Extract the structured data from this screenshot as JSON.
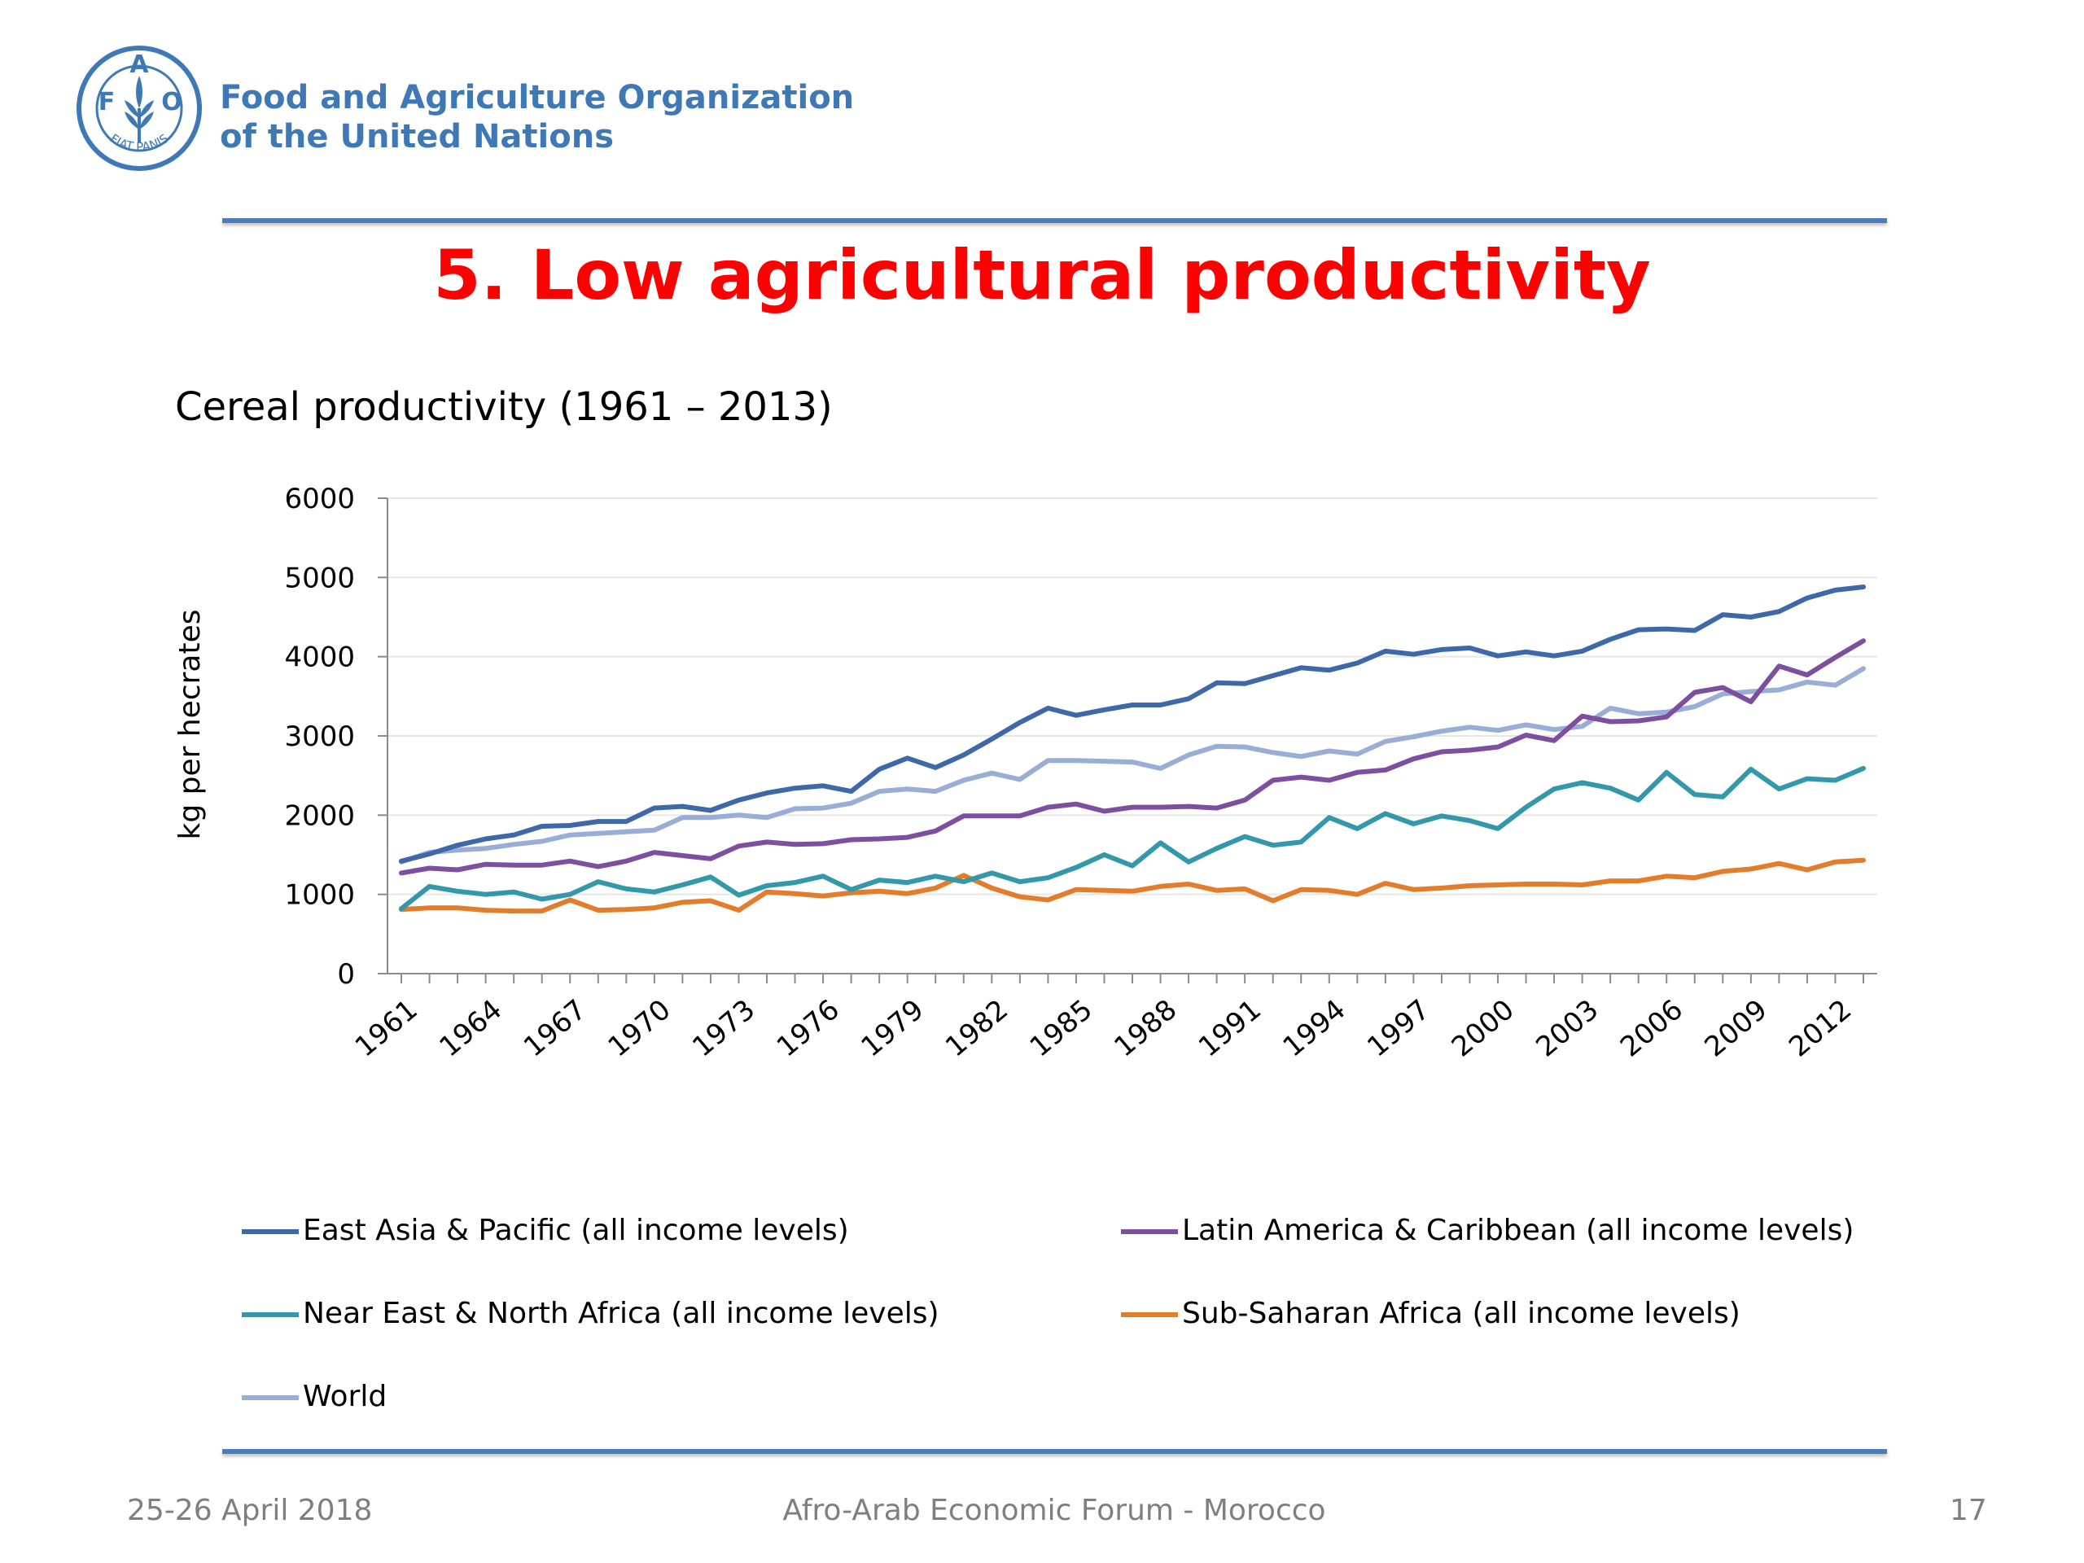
{
  "header": {
    "org_line1": "Food and Agriculture Organization",
    "org_line2": "of the United Nations",
    "logo_letters": [
      "F",
      "A",
      "O"
    ],
    "logo_motto": "FIAT PANIS"
  },
  "slide": {
    "title": "5. Low agricultural productivity",
    "subtitle": "Cereal productivity (1961 – 2013)"
  },
  "colors": {
    "accent": "#4a7ebb",
    "title": "#ff0000",
    "footer_text": "#7f7f7f"
  },
  "chart_data": {
    "type": "line",
    "ylabel": "kg per hecrates",
    "ylim": [
      0,
      6000
    ],
    "yticks": [
      0,
      1000,
      2000,
      3000,
      4000,
      5000,
      6000
    ],
    "xtick_labels": [
      "1961",
      "1964",
      "1967",
      "1970",
      "1973",
      "1976",
      "1979",
      "1982",
      "1985",
      "1988",
      "1991",
      "1994",
      "1997",
      "2000",
      "2003",
      "2006",
      "2009",
      "2012"
    ],
    "x": [
      1961,
      1962,
      1963,
      1964,
      1965,
      1966,
      1967,
      1968,
      1969,
      1970,
      1971,
      1972,
      1973,
      1974,
      1975,
      1976,
      1977,
      1978,
      1979,
      1980,
      1981,
      1982,
      1983,
      1984,
      1985,
      1986,
      1987,
      1988,
      1989,
      1990,
      1991,
      1992,
      1993,
      1994,
      1995,
      1996,
      1997,
      1998,
      1999,
      2000,
      2001,
      2002,
      2003,
      2004,
      2005,
      2006,
      2007,
      2008,
      2009,
      2010,
      2011,
      2012,
      2013
    ],
    "grid": "horizontal",
    "legend_position": "bottom",
    "series": [
      {
        "name": "East Asia & Pacific (all income levels)",
        "color": "#3e68a8",
        "values": [
          1420,
          1510,
          1620,
          1700,
          1750,
          1860,
          1870,
          1920,
          1920,
          2090,
          2110,
          2060,
          2190,
          2280,
          2340,
          2370,
          2300,
          2580,
          2720,
          2600,
          2760,
          2960,
          3170,
          3350,
          3260,
          3330,
          3390,
          3390,
          3470,
          3670,
          3660,
          3760,
          3860,
          3830,
          3920,
          4070,
          4030,
          4090,
          4110,
          4010,
          4060,
          4010,
          4070,
          4220,
          4340,
          4350,
          4330,
          4530,
          4500,
          4570,
          4740,
          4840,
          4880
        ]
      },
      {
        "name": "Latin America & Caribbean (all income levels)",
        "color": "#7e4f9f",
        "values": [
          1270,
          1330,
          1310,
          1380,
          1370,
          1370,
          1420,
          1350,
          1420,
          1530,
          1490,
          1450,
          1610,
          1660,
          1630,
          1640,
          1690,
          1700,
          1720,
          1800,
          1990,
          1990,
          1990,
          2100,
          2140,
          2050,
          2100,
          2100,
          2110,
          2090,
          2190,
          2440,
          2480,
          2440,
          2540,
          2570,
          2710,
          2800,
          2820,
          2860,
          3010,
          2940,
          3250,
          3180,
          3190,
          3240,
          3550,
          3610,
          3430,
          3880,
          3770,
          3990,
          4200
        ]
      },
      {
        "name": "Near East & North Africa (all income levels)",
        "color": "#3399aa",
        "values": [
          820,
          1100,
          1040,
          1000,
          1030,
          940,
          1000,
          1160,
          1070,
          1030,
          1120,
          1220,
          990,
          1110,
          1150,
          1230,
          1060,
          1180,
          1150,
          1230,
          1160,
          1270,
          1160,
          1210,
          1340,
          1500,
          1360,
          1650,
          1410,
          1580,
          1730,
          1620,
          1660,
          1970,
          1830,
          2020,
          1890,
          1990,
          1930,
          1830,
          2100,
          2330,
          2410,
          2340,
          2190,
          2540,
          2260,
          2230,
          2580,
          2330,
          2460,
          2440,
          2590
        ]
      },
      {
        "name": "Sub-Saharan Africa (all income levels)",
        "color": "#e37d2c",
        "values": [
          810,
          830,
          830,
          800,
          790,
          790,
          930,
          800,
          810,
          830,
          900,
          920,
          800,
          1030,
          1010,
          980,
          1020,
          1040,
          1010,
          1080,
          1240,
          1080,
          970,
          930,
          1060,
          1050,
          1040,
          1100,
          1130,
          1050,
          1070,
          920,
          1060,
          1050,
          1000,
          1140,
          1060,
          1080,
          1110,
          1120,
          1130,
          1130,
          1120,
          1170,
          1170,
          1230,
          1210,
          1290,
          1320,
          1390,
          1310,
          1410,
          1430
        ]
      },
      {
        "name": "World",
        "color": "#99add6",
        "values": [
          1410,
          1530,
          1560,
          1580,
          1630,
          1670,
          1750,
          1770,
          1790,
          1810,
          1970,
          1970,
          2000,
          1970,
          2080,
          2090,
          2150,
          2300,
          2330,
          2300,
          2440,
          2530,
          2450,
          2690,
          2690,
          2680,
          2670,
          2590,
          2760,
          2870,
          2860,
          2790,
          2740,
          2810,
          2770,
          2930,
          2990,
          3060,
          3110,
          3070,
          3140,
          3080,
          3120,
          3350,
          3280,
          3300,
          3370,
          3530,
          3560,
          3580,
          3680,
          3640,
          3850
        ]
      }
    ]
  },
  "footer": {
    "date": "25-26 April 2018",
    "event": "Afro-Arab Economic Forum - Morocco",
    "page": "17"
  }
}
